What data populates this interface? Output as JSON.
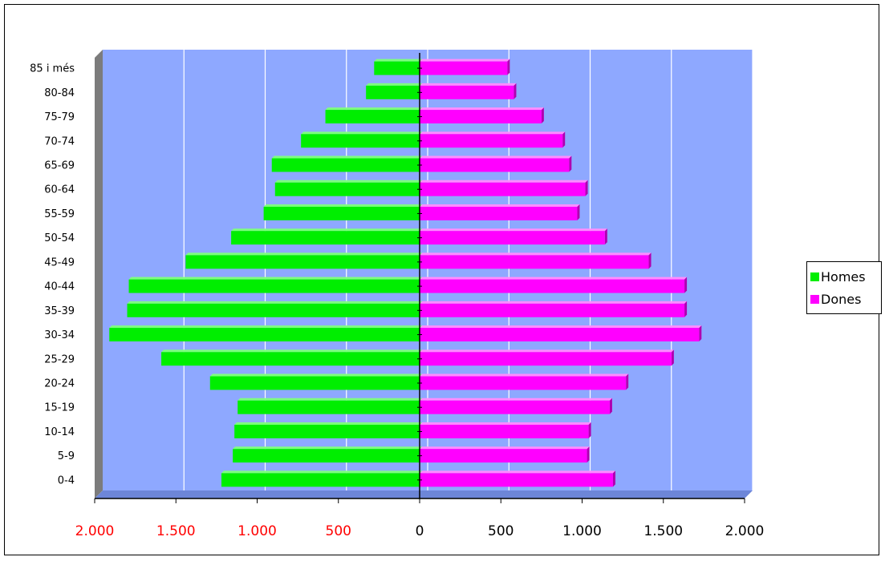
{
  "chart_data": {
    "type": "bar",
    "orientation": "horizontal",
    "layout": "population-pyramid",
    "title": "",
    "xlabel": "",
    "ylabel": "",
    "categories": [
      "0-4",
      "5-9",
      "10-14",
      "15-19",
      "20-24",
      "25-29",
      "30-34",
      "35-39",
      "40-44",
      "45-49",
      "50-54",
      "55-59",
      "60-64",
      "65-69",
      "70-74",
      "75-79",
      "80-84",
      "85 i més"
    ],
    "series": [
      {
        "name": "Homes",
        "side": "left",
        "color": "#00ee00",
        "values": [
          1220,
          1150,
          1140,
          1120,
          1290,
          1590,
          1910,
          1800,
          1790,
          1440,
          1160,
          960,
          890,
          910,
          730,
          580,
          330,
          280
        ]
      },
      {
        "name": "Dones",
        "side": "right",
        "color": "#ff00ff",
        "values": [
          1190,
          1030,
          1040,
          1170,
          1270,
          1550,
          1720,
          1630,
          1630,
          1410,
          1140,
          970,
          1020,
          920,
          880,
          750,
          580,
          540
        ]
      }
    ],
    "xlim": [
      -2000,
      2000
    ],
    "x_ticks": [
      -2000,
      -1500,
      -1000,
      -500,
      0,
      500,
      1000,
      1500,
      2000
    ],
    "x_tick_labels": [
      "2.000",
      "1.500",
      "1.000",
      "500",
      "0",
      "500",
      "1.000",
      "1.500",
      "2.000"
    ],
    "left_tick_color": "#ff0000",
    "right_tick_color": "#000000",
    "plot_background": "#8ea8ff",
    "gridlines": "vertical",
    "legend_position": "right"
  }
}
